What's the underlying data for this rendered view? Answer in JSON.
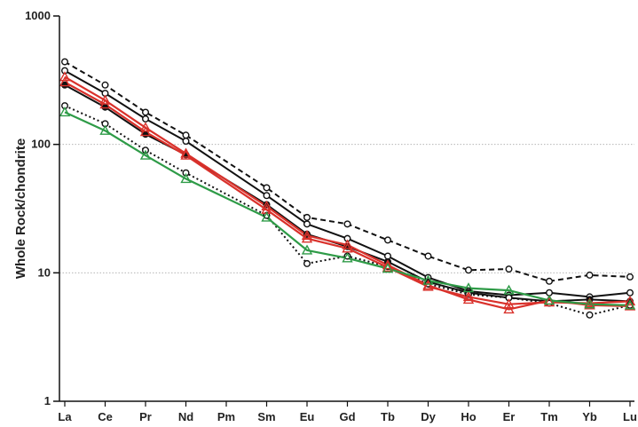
{
  "chart_data": {
    "type": "line",
    "title": "",
    "xlabel": "",
    "ylabel": "Whole Rock/chondrite",
    "yscale": "log",
    "ylim": [
      1,
      1000
    ],
    "y_ticks": [
      "1",
      "10",
      "100",
      "1000"
    ],
    "grid": "horizontal dotted at 10 and 100",
    "categories": [
      "La",
      "Ce",
      "Pr",
      "Nd",
      "Pm",
      "Sm",
      "Eu",
      "Gd",
      "Tb",
      "Dy",
      "Ho",
      "Er",
      "Tm",
      "Yb",
      "Lu"
    ],
    "colors": {
      "black": "#111111",
      "red": "#d9312b",
      "green": "#2e9b47",
      "gridline": "#aaaaaa"
    },
    "series": [
      {
        "color": "black",
        "line": "dashed",
        "marker": "open-circle",
        "values": [
          440,
          290,
          178,
          118,
          null,
          46,
          27,
          24,
          18,
          13.5,
          10.5,
          10.7,
          8.6,
          9.6,
          9.3
        ]
      },
      {
        "color": "black",
        "line": "solid",
        "marker": "open-circle",
        "values": [
          375,
          250,
          158,
          106,
          null,
          40,
          24,
          18.5,
          13.5,
          9.2,
          7.2,
          6.7,
          7.0,
          6.5,
          7.0
        ]
      },
      {
        "color": "black",
        "line": "solid",
        "marker": "filled-circle",
        "values": [
          290,
          195,
          120,
          83,
          null,
          34,
          20,
          16,
          12.2,
          8.5,
          7.0,
          6.4,
          6.0,
          6.2,
          6.0
        ]
      },
      {
        "color": "black",
        "line": "dotted",
        "marker": "open-circle",
        "values": [
          200,
          145,
          90,
          60,
          null,
          28,
          11.8,
          13.5,
          11.2,
          8.2,
          6.8,
          6.4,
          5.8,
          4.7,
          5.6
        ]
      },
      {
        "color": "red",
        "line": "solid",
        "marker": "open-triangle",
        "values": [
          335,
          220,
          135,
          85,
          null,
          33,
          19.5,
          16.5,
          11.5,
          8.0,
          6.2,
          5.2,
          6.1,
          5.6,
          5.5
        ]
      },
      {
        "color": "red",
        "line": "solid",
        "marker": "open-triangle",
        "values": [
          305,
          205,
          125,
          82,
          null,
          31,
          18.5,
          15.5,
          11.0,
          7.8,
          6.5,
          5.7,
          5.9,
          5.8,
          6.0
        ]
      },
      {
        "color": "green",
        "line": "solid",
        "marker": "open-triangle",
        "values": [
          178,
          128,
          82,
          54,
          null,
          27,
          15,
          13,
          10.8,
          8.7,
          7.6,
          7.3,
          6.1,
          5.7,
          5.6
        ]
      }
    ]
  }
}
